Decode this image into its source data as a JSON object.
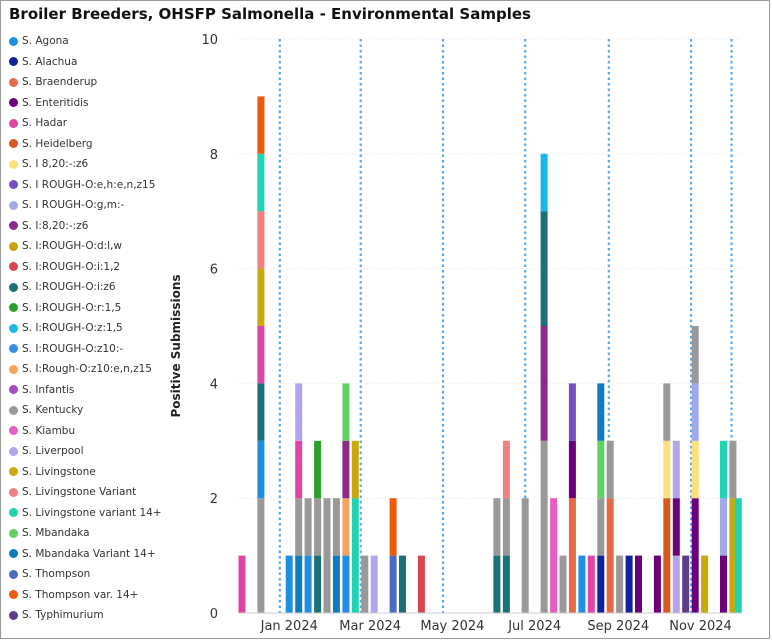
{
  "title": "Broiler Breeders, OHSFP Salmonella - Environmental Samples",
  "chart_data": {
    "type": "bar",
    "stacked": true,
    "ylabel": "Positive Submissions",
    "xlabel": "",
    "ylim": [
      0,
      10
    ],
    "yticks": [
      0,
      2,
      4,
      6,
      8,
      10
    ],
    "x_date_range": [
      "2023-12-01",
      "2024-12-08"
    ],
    "x_ticks": [
      {
        "label": "Jan 2024",
        "date": "2024-01-08"
      },
      {
        "label": "Mar 2024",
        "date": "2024-03-08"
      },
      {
        "label": "May 2024",
        "date": "2024-05-08"
      },
      {
        "label": "Jul 2024",
        "date": "2024-07-08"
      },
      {
        "label": "Sep 2024",
        "date": "2024-09-08"
      },
      {
        "label": "Nov 2024",
        "date": "2024-11-08"
      }
    ],
    "vertical_dotted_lines": [
      "2024-01-01",
      "2024-03-01",
      "2024-05-01",
      "2024-07-01",
      "2024-09-01",
      "2024-11-01",
      "2024-12-01"
    ],
    "legend_position": "left",
    "series": [
      {
        "name": "S. Agona",
        "color": "#1f8fe6"
      },
      {
        "name": "S. Alachua",
        "color": "#12239e"
      },
      {
        "name": "S. Braenderup",
        "color": "#e8694a"
      },
      {
        "name": "S. Enteritidis",
        "color": "#6b007b"
      },
      {
        "name": "S. Hadar",
        "color": "#e044a7"
      },
      {
        "name": "S. Heidelberg",
        "color": "#d9581e"
      },
      {
        "name": "S. I 8,20:-:z6",
        "color": "#fde07b"
      },
      {
        "name": "S. I ROUGH-O:e,h:e,n,z15",
        "color": "#744ec2"
      },
      {
        "name": "S. I ROUGH-O:g,m:-",
        "color": "#a0a9eb"
      },
      {
        "name": "S. I:8,20:-:z6",
        "color": "#8c2a8c"
      },
      {
        "name": "S. I:ROUGH-O:d:l,w",
        "color": "#c5a406"
      },
      {
        "name": "S. I:ROUGH-O:i:1,2",
        "color": "#d64550"
      },
      {
        "name": "S. I:ROUGH-O:i:z6",
        "color": "#197278"
      },
      {
        "name": "S. I:ROUGH-O:r:1,5",
        "color": "#2ca02c"
      },
      {
        "name": "S. I:ROUGH-O:z:1,5",
        "color": "#1ab8e6"
      },
      {
        "name": "S. I:ROUGH-O:z10:-",
        "color": "#3b8ee8"
      },
      {
        "name": "S. I:Rough-O:z10:e,n,z15",
        "color": "#f5a35c"
      },
      {
        "name": "S. Infantis",
        "color": "#a24bc4"
      },
      {
        "name": "S. Kentucky",
        "color": "#999999"
      },
      {
        "name": "S. Kiambu",
        "color": "#e65ec2"
      },
      {
        "name": "S. Liverpool",
        "color": "#b3a4f0"
      },
      {
        "name": "S. Livingstone",
        "color": "#c8a90a"
      },
      {
        "name": "S. Livingstone Variant",
        "color": "#f47f7f"
      },
      {
        "name": "S. Livingstone variant 14+",
        "color": "#20d3b3"
      },
      {
        "name": "S. Mbandaka",
        "color": "#5fd35f"
      },
      {
        "name": "S. Mbandaka Variant 14+",
        "color": "#0f7cc2"
      },
      {
        "name": "S. Thompson",
        "color": "#4a6cc4"
      },
      {
        "name": "S. Thompson var. 14+",
        "color": "#f05a0a"
      },
      {
        "name": "S. Typhimurium",
        "color": "#5b3d8c"
      }
    ],
    "bars": [
      {
        "date": "2023-12-04",
        "segments": [
          [
            "S. Hadar",
            1
          ]
        ]
      },
      {
        "date": "2023-12-18",
        "segments": [
          [
            "S. Kentucky",
            2
          ],
          [
            "S. Agona",
            1
          ],
          [
            "S. I:ROUGH-O:i:z6",
            1
          ],
          [
            "S. Hadar",
            1
          ],
          [
            "S. Livingstone",
            1
          ],
          [
            "S. Livingstone Variant",
            1
          ],
          [
            "S. Livingstone variant 14+",
            1
          ],
          [
            "S. Thompson var. 14+",
            1
          ]
        ]
      },
      {
        "date": "2024-01-08",
        "segments": [
          [
            "S. Agona",
            1
          ]
        ]
      },
      {
        "date": "2024-01-15",
        "segments": [
          [
            "S. Mbandaka Variant 14+",
            1
          ],
          [
            "S. Kentucky",
            1
          ],
          [
            "S. Hadar",
            1
          ],
          [
            "S. Liverpool",
            1
          ]
        ]
      },
      {
        "date": "2024-01-22",
        "segments": [
          [
            "S. Agona",
            1
          ],
          [
            "S. Kentucky",
            1
          ]
        ]
      },
      {
        "date": "2024-01-29",
        "segments": [
          [
            "S. I:ROUGH-O:i:z6",
            1
          ],
          [
            "S. Kentucky",
            1
          ],
          [
            "S. I:ROUGH-O:r:1,5",
            1
          ]
        ]
      },
      {
        "date": "2024-02-05",
        "segments": [
          [
            "S. Kentucky",
            2
          ]
        ]
      },
      {
        "date": "2024-02-12",
        "segments": [
          [
            "S. Mbandaka Variant 14+",
            1
          ],
          [
            "S. Kentucky",
            1
          ]
        ]
      },
      {
        "date": "2024-02-19",
        "segments": [
          [
            "S. Agona",
            1
          ],
          [
            "S. I:Rough-O:z10:e,n,z15",
            1
          ],
          [
            "S. I:8,20:-:z6",
            1
          ],
          [
            "S. Mbandaka",
            1
          ]
        ]
      },
      {
        "date": "2024-02-26",
        "segments": [
          [
            "S. Livingstone variant 14+",
            2
          ],
          [
            "S. Livingstone",
            1
          ]
        ]
      },
      {
        "date": "2024-03-04",
        "segments": [
          [
            "S. Kentucky",
            1
          ]
        ]
      },
      {
        "date": "2024-03-11",
        "segments": [
          [
            "S. Liverpool",
            1
          ]
        ]
      },
      {
        "date": "2024-03-25",
        "segments": [
          [
            "S. Thompson",
            1
          ],
          [
            "S. Thompson var. 14+",
            1
          ]
        ]
      },
      {
        "date": "2024-04-01",
        "segments": [
          [
            "S. I:ROUGH-O:i:z6",
            1
          ]
        ]
      },
      {
        "date": "2024-04-15",
        "segments": [
          [
            "S. I:ROUGH-O:i:1,2",
            1
          ]
        ]
      },
      {
        "date": "2024-06-10",
        "segments": [
          [
            "S. I:ROUGH-O:i:z6",
            1
          ],
          [
            "S. Kentucky",
            1
          ]
        ]
      },
      {
        "date": "2024-06-17",
        "segments": [
          [
            "S. I:ROUGH-O:i:z6",
            1
          ],
          [
            "S. Kentucky",
            1
          ],
          [
            "S. Livingstone Variant",
            1
          ]
        ]
      },
      {
        "date": "2024-07-01",
        "segments": [
          [
            "S. Kentucky",
            2
          ]
        ]
      },
      {
        "date": "2024-07-15",
        "segments": [
          [
            "S. Kentucky",
            3
          ],
          [
            "S. I:8,20:-:z6",
            2
          ],
          [
            "S. I:ROUGH-O:i:z6",
            2
          ],
          [
            "S. I:ROUGH-O:z:1,5",
            1
          ]
        ]
      },
      {
        "date": "2024-07-22",
        "segments": [
          [
            "S. Kiambu",
            2
          ]
        ]
      },
      {
        "date": "2024-07-29",
        "segments": [
          [
            "S. Kentucky",
            1
          ]
        ]
      },
      {
        "date": "2024-08-05",
        "segments": [
          [
            "S. Braenderup",
            2
          ],
          [
            "S. Enteritidis",
            1
          ],
          [
            "S. I ROUGH-O:e,h:e,n,z15",
            1
          ]
        ]
      },
      {
        "date": "2024-08-12",
        "segments": [
          [
            "S. Agona",
            1
          ]
        ]
      },
      {
        "date": "2024-08-19",
        "segments": [
          [
            "S. Hadar",
            1
          ]
        ]
      },
      {
        "date": "2024-08-26",
        "segments": [
          [
            "S. Alachua",
            1
          ],
          [
            "S. Kentucky",
            1
          ],
          [
            "S. Mbandaka",
            1
          ],
          [
            "S. Mbandaka Variant 14+",
            1
          ]
        ]
      },
      {
        "date": "2024-09-02",
        "segments": [
          [
            "S. Braenderup",
            2
          ],
          [
            "S. Kentucky",
            1
          ]
        ]
      },
      {
        "date": "2024-09-09",
        "segments": [
          [
            "S. Kentucky",
            1
          ]
        ]
      },
      {
        "date": "2024-09-16",
        "segments": [
          [
            "S. Alachua",
            1
          ]
        ]
      },
      {
        "date": "2024-09-23",
        "segments": [
          [
            "S. Enteritidis",
            1
          ]
        ]
      },
      {
        "date": "2024-10-07",
        "segments": [
          [
            "S. Enteritidis",
            1
          ]
        ]
      },
      {
        "date": "2024-10-14",
        "segments": [
          [
            "S. Heidelberg",
            2
          ],
          [
            "S. I 8,20:-:z6",
            1
          ],
          [
            "S. Kentucky",
            1
          ]
        ]
      },
      {
        "date": "2024-10-21",
        "segments": [
          [
            "S. Liverpool",
            1
          ],
          [
            "S. Enteritidis",
            1
          ],
          [
            "S. Liverpool",
            1
          ]
        ]
      },
      {
        "date": "2024-10-28",
        "segments": [
          [
            "S. Typhimurium",
            1
          ]
        ]
      },
      {
        "date": "2024-11-04",
        "segments": [
          [
            "S. Enteritidis",
            2
          ],
          [
            "S. I 8,20:-:z6",
            1
          ],
          [
            "S. I ROUGH-O:g,m:-",
            1
          ],
          [
            "S. Kentucky",
            1
          ]
        ]
      },
      {
        "date": "2024-11-11",
        "segments": [
          [
            "S. Livingstone",
            1
          ]
        ]
      },
      {
        "date": "2024-11-25",
        "segments": [
          [
            "S. Enteritidis",
            1
          ],
          [
            "S. I ROUGH-O:g,m:-",
            1
          ],
          [
            "S. Livingstone variant 14+",
            1
          ]
        ]
      },
      {
        "date": "2024-12-02",
        "segments": [
          [
            "S. Livingstone",
            2
          ],
          [
            "S. Kentucky",
            1
          ]
        ]
      },
      {
        "date": "2024-12-06",
        "segments": [
          [
            "S. Livingstone variant 14+",
            2
          ]
        ]
      }
    ]
  }
}
